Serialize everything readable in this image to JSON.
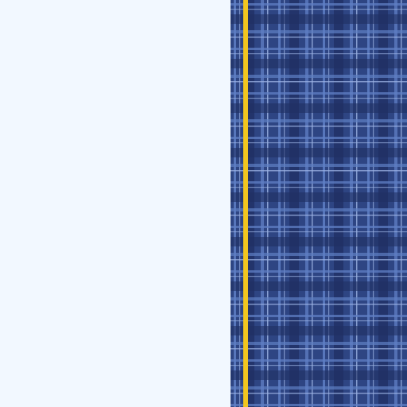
{
  "colors": {
    "background": "#f2f8ff",
    "tartan_base": "#2e4583",
    "tartan_dark": "#1f2f63",
    "tartan_light": "#5e7fc4",
    "tartan_pale": "#9cb3e4",
    "stripe": "#f2c61f"
  }
}
